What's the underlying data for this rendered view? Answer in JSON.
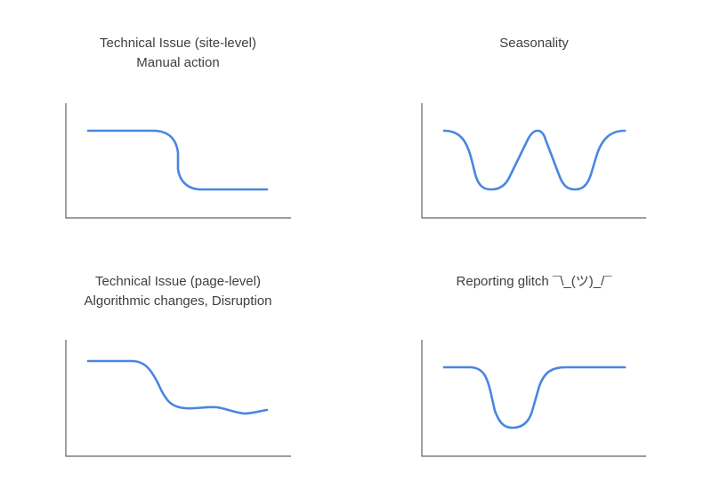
{
  "panels": [
    {
      "title_lines": [
        "Technical Issue (site-level)",
        "Manual action"
      ],
      "pattern": "step-down",
      "line_color": "#4a86e0"
    },
    {
      "title_lines": [
        "Seasonality",
        ""
      ],
      "pattern": "double-dip",
      "line_color": "#4a86e0"
    },
    {
      "title_lines": [
        "Technical Issue (page-level)",
        "Algorithmic changes, Disruption"
      ],
      "pattern": "gradual-decline",
      "line_color": "#4a86e0"
    },
    {
      "title_lines": [
        "Reporting glitch ¯\\_(ツ)_/¯",
        ""
      ],
      "pattern": "temporary-dip",
      "line_color": "#4a86e0"
    }
  ]
}
